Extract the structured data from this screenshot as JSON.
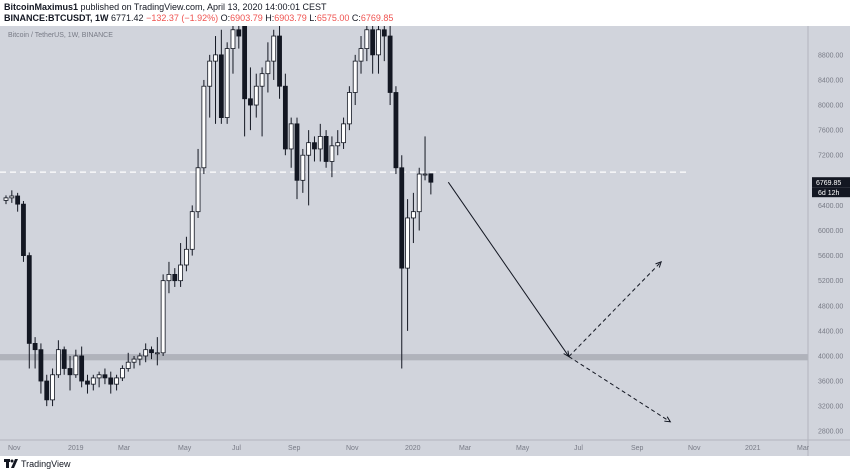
{
  "header": {
    "author": "BitcoinMaximus1",
    "published": "published on TradingView.com, April 13, 2020 14:00:01 CEST",
    "symbol": "BINANCE:BTCUSDT, 1W",
    "last": "6771.42",
    "change": "−132.37 (−1.92%)",
    "open_label": "O:",
    "open": "6903.79",
    "high_label": "H:",
    "high": "6903.79",
    "low_label": "L:",
    "low": "6575.00",
    "close_label": "C:",
    "close": "6769.85"
  },
  "chart_data": {
    "type": "candlestick",
    "watermark": "Bitcoin / TetherUS, 1W, BINANCE",
    "y_axis_ticks": [
      2800,
      3200,
      3600,
      4000,
      4400,
      4800,
      5200,
      5600,
      6000,
      6400,
      6800,
      7200,
      7600,
      8000,
      8400,
      8800
    ],
    "ylim": [
      2660,
      9260
    ],
    "x_axis_labels": [
      "Nov",
      "2019",
      "Mar",
      "May",
      "Jul",
      "Sep",
      "Nov",
      "2020",
      "Mar",
      "May",
      "Jul",
      "Sep",
      "Nov",
      "2021",
      "Mar"
    ],
    "price_label": "6769.85",
    "countdown_label": "6d 12h",
    "horizontal_line": 6930,
    "support_zone": [
      3930,
      4030
    ],
    "candles": [
      [
        6480,
        6560,
        6420,
        6520
      ],
      [
        6520,
        6640,
        6440,
        6550
      ],
      [
        6550,
        6600,
        6300,
        6420
      ],
      [
        6420,
        6470,
        5500,
        5600
      ],
      [
        5600,
        5650,
        3800,
        4200
      ],
      [
        4200,
        4300,
        3800,
        4100
      ],
      [
        4100,
        4200,
        3400,
        3600
      ],
      [
        3600,
        3700,
        3200,
        3300
      ],
      [
        3300,
        3800,
        3200,
        3700
      ],
      [
        3700,
        4250,
        3650,
        4100
      ],
      [
        4100,
        4150,
        3700,
        3800
      ],
      [
        3800,
        4000,
        3450,
        3700
      ],
      [
        3700,
        4100,
        3650,
        4000
      ],
      [
        4000,
        4150,
        3500,
        3600
      ],
      [
        3600,
        3700,
        3400,
        3550
      ],
      [
        3550,
        3700,
        3450,
        3650
      ],
      [
        3650,
        3750,
        3500,
        3700
      ],
      [
        3700,
        3800,
        3550,
        3650
      ],
      [
        3650,
        3750,
        3400,
        3550
      ],
      [
        3550,
        3700,
        3450,
        3650
      ],
      [
        3650,
        3850,
        3600,
        3800
      ],
      [
        3800,
        4050,
        3750,
        3900
      ],
      [
        3900,
        4000,
        3800,
        3950
      ],
      [
        3950,
        4050,
        3850,
        4000
      ],
      [
        4000,
        4200,
        3900,
        4100
      ],
      [
        4100,
        4150,
        3950,
        4050
      ],
      [
        4050,
        4300,
        3850,
        4050
      ],
      [
        4050,
        5300,
        4000,
        5200
      ],
      [
        5200,
        5500,
        5000,
        5300
      ],
      [
        5300,
        5400,
        5100,
        5200
      ],
      [
        5200,
        5800,
        5100,
        5450
      ],
      [
        5450,
        5900,
        5350,
        5700
      ],
      [
        5700,
        6400,
        5600,
        6300
      ],
      [
        6300,
        7300,
        6200,
        7000
      ],
      [
        7000,
        8400,
        6900,
        8300
      ],
      [
        8300,
        8800,
        7800,
        8700
      ],
      [
        8700,
        9100,
        7700,
        8800
      ],
      [
        8800,
        9200,
        7700,
        7800
      ],
      [
        7800,
        9000,
        7700,
        8900
      ],
      [
        8900,
        9260,
        8500,
        9200
      ]
    ],
    "post_candles": [
      [
        9200,
        9260,
        8900,
        9100
      ],
      [
        9260,
        9260,
        7500,
        8100
      ],
      [
        8100,
        8600,
        7600,
        8000
      ],
      [
        8000,
        8500,
        7800,
        8300
      ],
      [
        8300,
        8600,
        7500,
        8500
      ],
      [
        8500,
        9000,
        8200,
        8700
      ],
      [
        8700,
        9200,
        8400,
        9100
      ],
      [
        9100,
        9260,
        8100,
        8300
      ],
      [
        8300,
        8500,
        7200,
        7300
      ],
      [
        7300,
        7800,
        7000,
        7700
      ],
      [
        7700,
        7800,
        6500,
        6800
      ],
      [
        6800,
        7300,
        6600,
        7200
      ],
      [
        7200,
        7600,
        6400,
        7400
      ],
      [
        7400,
        7500,
        7100,
        7300
      ],
      [
        7300,
        7700,
        7100,
        7500
      ],
      [
        7500,
        7600,
        7000,
        7100
      ],
      [
        7100,
        7500,
        6850,
        7350
      ],
      [
        7350,
        7600,
        7200,
        7400
      ],
      [
        7400,
        7800,
        7300,
        7700
      ],
      [
        7700,
        8300,
        7600,
        8200
      ],
      [
        8200,
        8800,
        8000,
        8700
      ],
      [
        8700,
        9100,
        8500,
        8900
      ],
      [
        8900,
        9260,
        8700,
        9200
      ],
      [
        9200,
        9260,
        8500,
        8800
      ],
      [
        8800,
        9260,
        8500,
        9200
      ],
      [
        9200,
        9260,
        8700,
        9100
      ],
      [
        9100,
        9260,
        8000,
        8200
      ],
      [
        8200,
        8300,
        6900,
        7000
      ],
      [
        7000,
        7200,
        3800,
        5400
      ],
      [
        5400,
        6500,
        4400,
        6200
      ],
      [
        6200,
        6600,
        5800,
        6300
      ],
      [
        6300,
        7000,
        6000,
        6900
      ],
      [
        6900,
        7500,
        6800,
        6900
      ],
      [
        6903.79,
        6903.79,
        6575,
        6769.85
      ]
    ],
    "projection_solid": [
      [
        "2020-04-13",
        6770
      ],
      [
        "2020-09-05",
        3990
      ]
    ],
    "projection_dashed_up": [
      [
        "2020-09-05",
        3990
      ],
      [
        "2020-12-25",
        5500
      ]
    ],
    "projection_dashed_down": [
      [
        "2020-09-05",
        3990
      ],
      [
        "2021-01-05",
        2950
      ]
    ]
  },
  "footer": {
    "brand": "TradingView"
  },
  "colors": {
    "background": "#d1d4dc",
    "bull": "#ffffff",
    "bear": "#131722",
    "axis_text": "#787b86",
    "zone": "#9598a1"
  }
}
